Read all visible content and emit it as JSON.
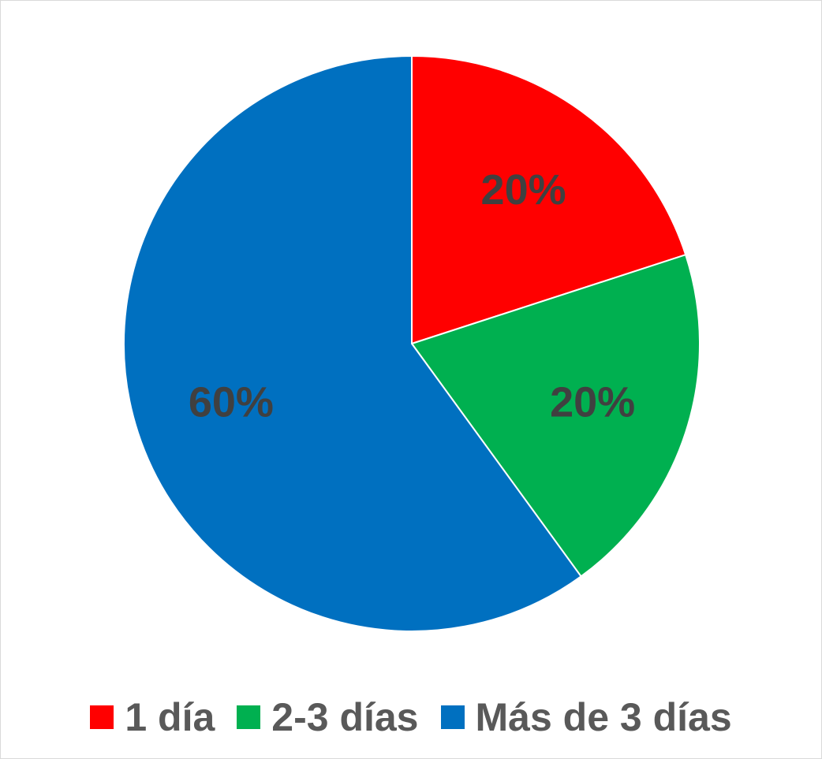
{
  "chart_data": {
    "type": "pie",
    "categories": [
      "1 día",
      "2-3 días",
      "Más de 3 días"
    ],
    "values": [
      20,
      20,
      60
    ],
    "data_labels": [
      "20%",
      "20%",
      "60%"
    ],
    "colors": [
      "#ff0000",
      "#00b050",
      "#0070c0"
    ],
    "start_angle_deg": 0,
    "direction": "clockwise",
    "legend_position": "bottom"
  }
}
